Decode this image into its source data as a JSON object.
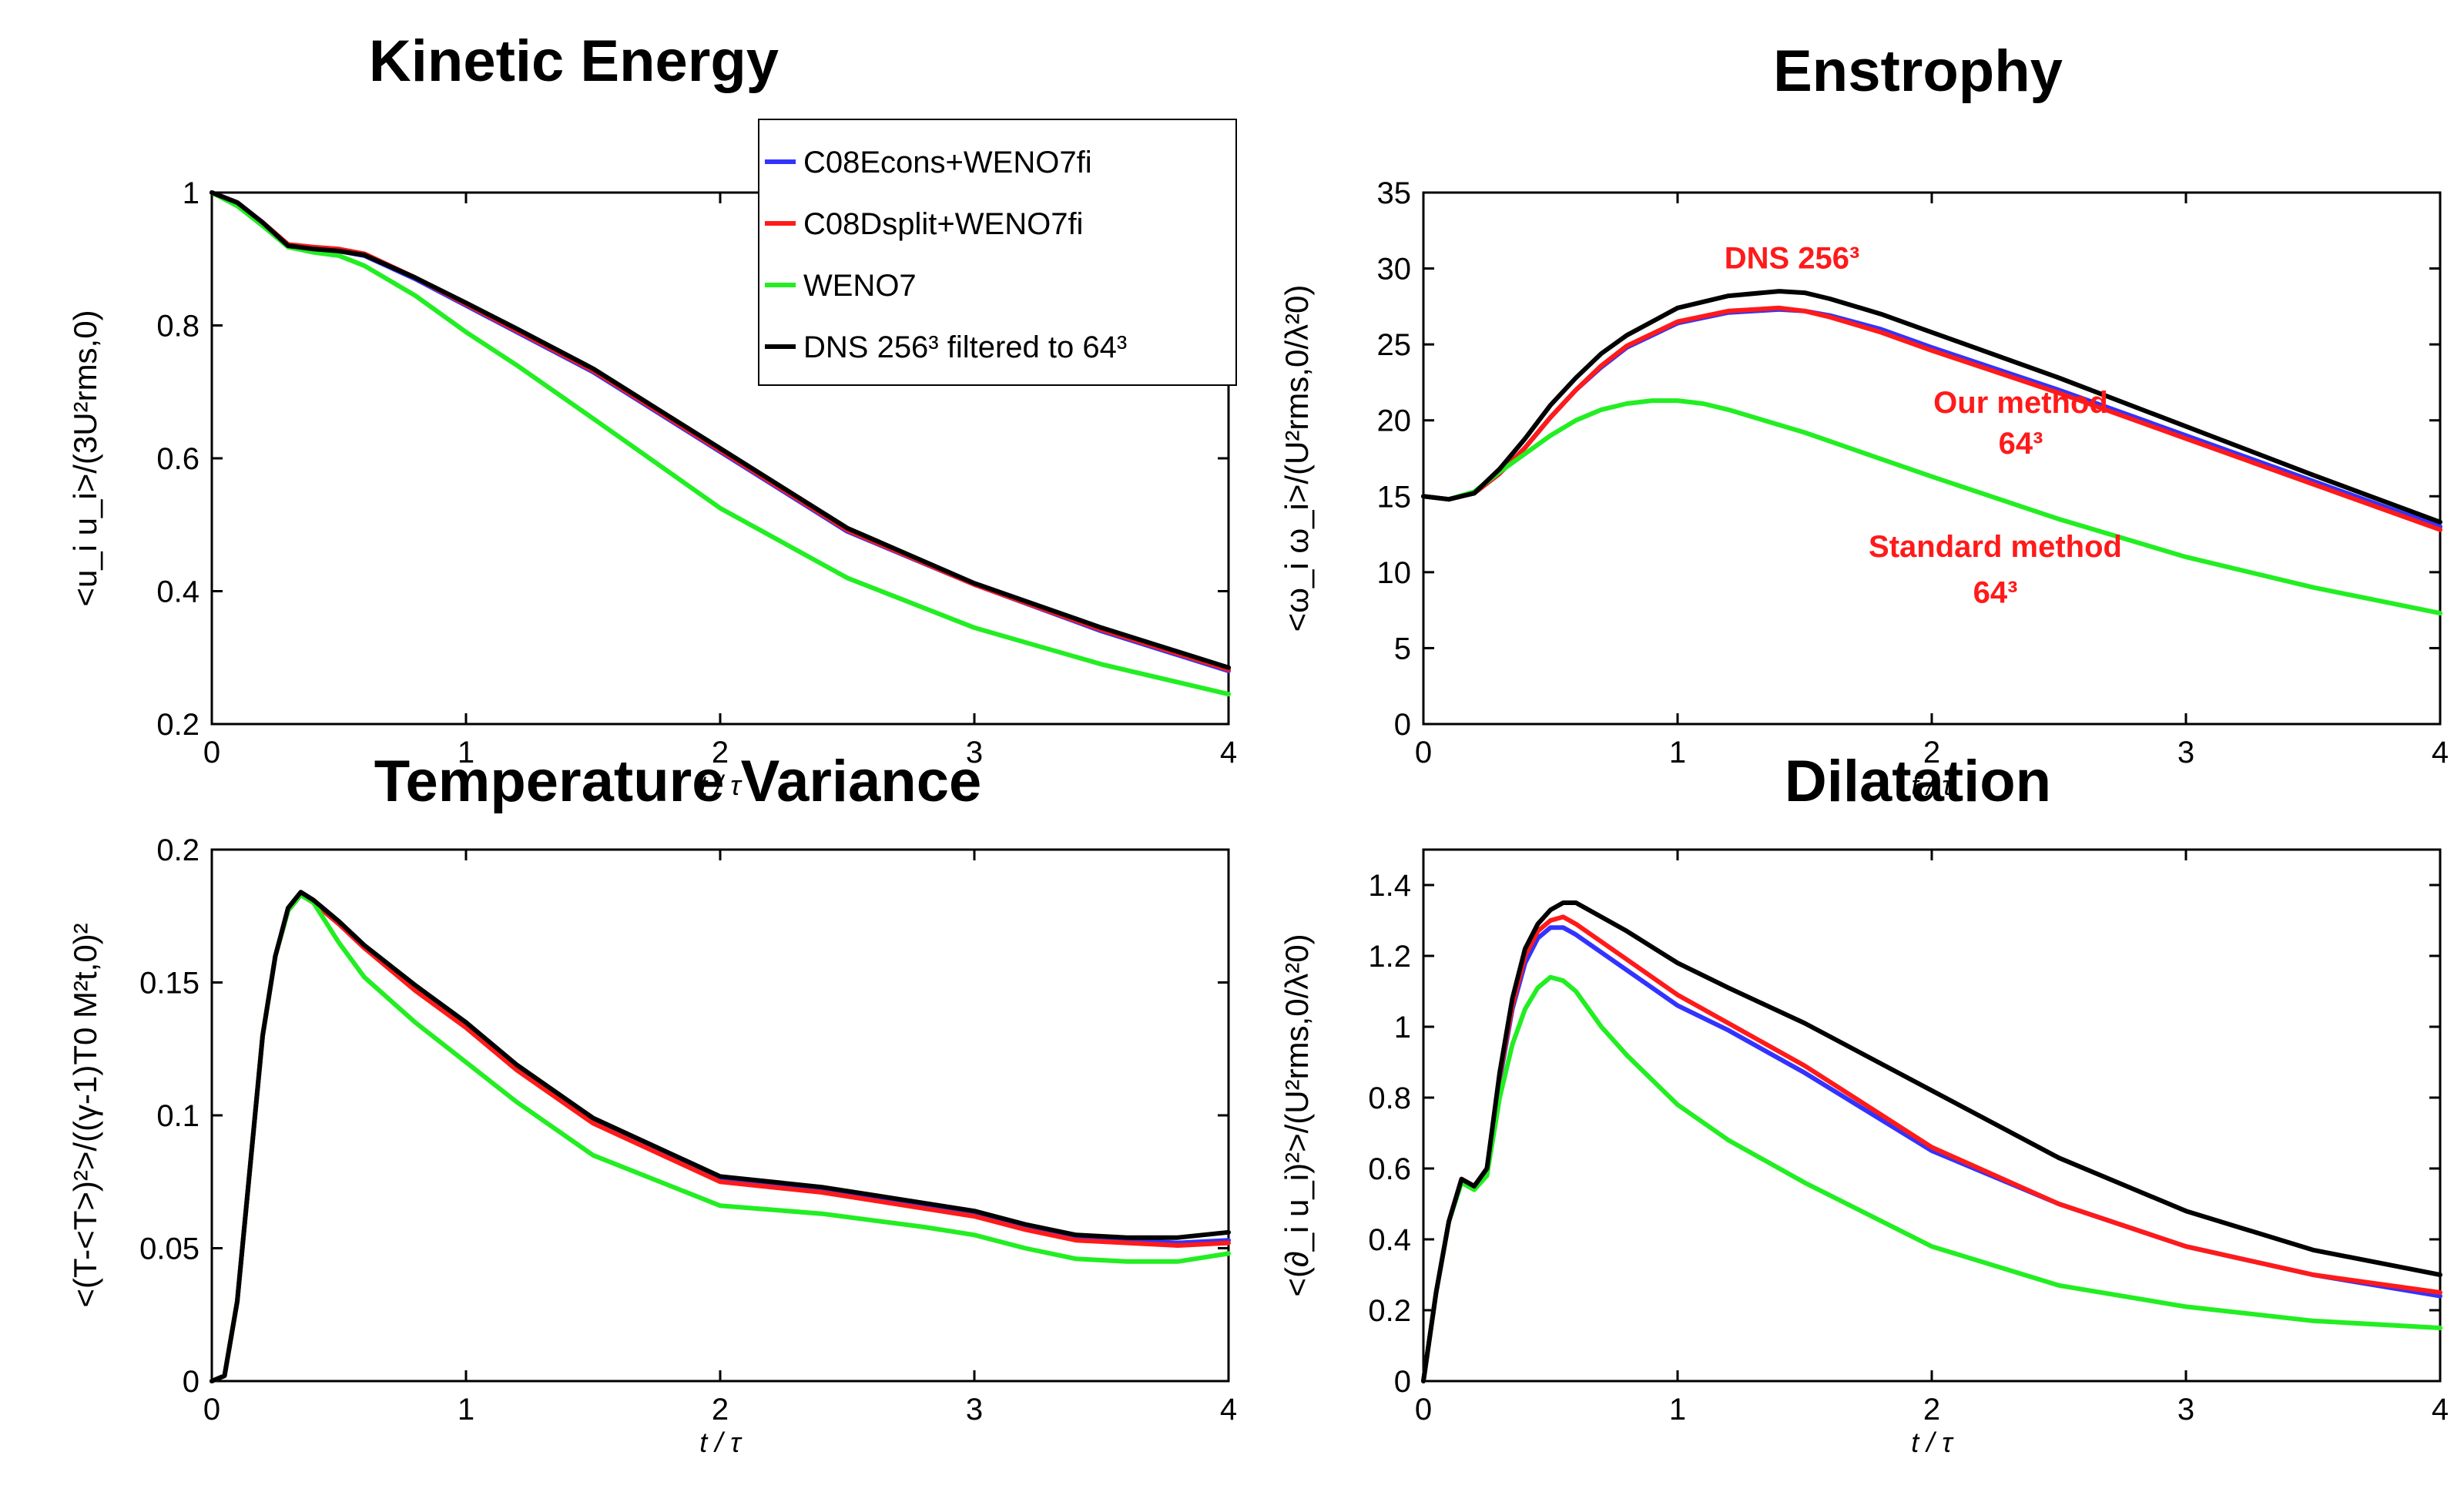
{
  "colors": {
    "C08Econs+WENO7fi": "#3333ff",
    "C08Dsplit+WENO7fi": "#ff1a1a",
    "WENO7": "#22ee22",
    "DNS": "#000000"
  },
  "legend": {
    "items": [
      {
        "name": "C08Econs+WENO7fi",
        "color": "#3333ff"
      },
      {
        "name": "C08Dsplit+WENO7fi",
        "color": "#ff1a1a"
      },
      {
        "name": "WENO7",
        "color": "#22ee22"
      },
      {
        "name": "DNS 256³ filtered to 64³",
        "color": "#000000"
      }
    ]
  },
  "chart_data": [
    {
      "id": "ke",
      "type": "line",
      "title": "Kinetic Energy",
      "ylabel": "<u_i u_i>/(3U²rms,0)",
      "xlabel": "t / τ",
      "xlim": [
        0,
        4
      ],
      "ylim": [
        0.2,
        1
      ],
      "xticks": [
        "0",
        "1",
        "2",
        "3",
        "4"
      ],
      "yticks": [
        "0.2",
        "0.4",
        "0.6",
        "0.8",
        "1"
      ],
      "series": [
        {
          "name": "C08Econs+WENO7fi",
          "color": "#3333ff",
          "x": [
            0,
            0.1,
            0.2,
            0.3,
            0.4,
            0.5,
            0.6,
            0.8,
            1.0,
            1.2,
            1.5,
            2.0,
            2.5,
            3.0,
            3.5,
            4.0
          ],
          "y": [
            1.0,
            0.985,
            0.955,
            0.92,
            0.915,
            0.912,
            0.905,
            0.87,
            0.83,
            0.79,
            0.73,
            0.61,
            0.49,
            0.41,
            0.34,
            0.28
          ]
        },
        {
          "name": "C08Dsplit+WENO7fi",
          "color": "#ff1a1a",
          "x": [
            0,
            0.1,
            0.2,
            0.3,
            0.4,
            0.5,
            0.6,
            0.8,
            1.0,
            1.2,
            1.5,
            2.0,
            2.5,
            3.0,
            3.5,
            4.0
          ],
          "y": [
            1.0,
            0.985,
            0.955,
            0.922,
            0.918,
            0.915,
            0.908,
            0.872,
            0.832,
            0.792,
            0.732,
            0.612,
            0.492,
            0.41,
            0.342,
            0.282
          ]
        },
        {
          "name": "WENO7",
          "color": "#22ee22",
          "x": [
            0,
            0.1,
            0.2,
            0.3,
            0.4,
            0.5,
            0.6,
            0.8,
            1.0,
            1.2,
            1.5,
            2.0,
            2.5,
            3.0,
            3.5,
            4.0
          ],
          "y": [
            1.0,
            0.98,
            0.95,
            0.918,
            0.91,
            0.905,
            0.89,
            0.845,
            0.79,
            0.74,
            0.66,
            0.525,
            0.42,
            0.345,
            0.29,
            0.245
          ]
        },
        {
          "name": "DNS 256³ filtered to 64³",
          "color": "#000000",
          "x": [
            0,
            0.1,
            0.2,
            0.3,
            0.4,
            0.5,
            0.6,
            0.8,
            1.0,
            1.2,
            1.5,
            2.0,
            2.5,
            3.0,
            3.5,
            4.0
          ],
          "y": [
            1.0,
            0.985,
            0.955,
            0.92,
            0.915,
            0.912,
            0.906,
            0.872,
            0.834,
            0.795,
            0.735,
            0.615,
            0.495,
            0.412,
            0.345,
            0.285
          ]
        }
      ]
    },
    {
      "id": "ens",
      "type": "line",
      "title": "Enstrophy",
      "ylabel": "<ω_i ω_i>/(U²rms,0/λ²0)",
      "xlabel": "t / τ",
      "xlim": [
        0,
        4
      ],
      "ylim": [
        0,
        35
      ],
      "xticks": [
        "0",
        "1",
        "2",
        "3",
        "4"
      ],
      "yticks": [
        "0",
        "5",
        "10",
        "15",
        "20",
        "25",
        "30",
        "35"
      ],
      "annotations": [
        {
          "text": "DNS 256³",
          "x": 1.45,
          "y": 30.0
        },
        {
          "text": "Our method",
          "x": 2.35,
          "y": 20.5
        },
        {
          "text": "64³",
          "x": 2.35,
          "y": 17.8
        },
        {
          "text": "Standard method",
          "x": 2.25,
          "y": 11.0
        },
        {
          "text": "64³",
          "x": 2.25,
          "y": 8.0
        }
      ],
      "series": [
        {
          "name": "C08Econs+WENO7fi",
          "color": "#3333ff",
          "x": [
            0,
            0.1,
            0.2,
            0.3,
            0.4,
            0.5,
            0.6,
            0.7,
            0.8,
            1.0,
            1.2,
            1.4,
            1.5,
            1.6,
            1.8,
            2.0,
            2.5,
            3.0,
            3.5,
            4.0
          ],
          "y": [
            15,
            14.8,
            15.2,
            16.5,
            18.2,
            20.2,
            22.0,
            23.5,
            24.8,
            26.4,
            27.1,
            27.3,
            27.2,
            26.9,
            26.0,
            24.8,
            22.0,
            19.0,
            16.0,
            13.0
          ]
        },
        {
          "name": "C08Dsplit+WENO7fi",
          "color": "#ff1a1a",
          "x": [
            0,
            0.1,
            0.2,
            0.3,
            0.4,
            0.5,
            0.6,
            0.7,
            0.8,
            1.0,
            1.2,
            1.4,
            1.5,
            1.6,
            1.8,
            2.0,
            2.5,
            3.0,
            3.5,
            4.0
          ],
          "y": [
            15,
            14.8,
            15.2,
            16.5,
            18.2,
            20.2,
            22.0,
            23.6,
            24.9,
            26.5,
            27.2,
            27.4,
            27.2,
            26.8,
            25.8,
            24.6,
            21.8,
            18.8,
            15.8,
            12.8
          ]
        },
        {
          "name": "WENO7",
          "color": "#22ee22",
          "x": [
            0,
            0.1,
            0.2,
            0.3,
            0.4,
            0.5,
            0.6,
            0.7,
            0.8,
            0.9,
            1.0,
            1.1,
            1.2,
            1.5,
            2.0,
            2.5,
            3.0,
            3.5,
            4.0
          ],
          "y": [
            15,
            14.8,
            15.3,
            16.6,
            17.8,
            19.0,
            20.0,
            20.7,
            21.1,
            21.3,
            21.3,
            21.1,
            20.7,
            19.2,
            16.3,
            13.5,
            11.0,
            9.0,
            7.3
          ]
        },
        {
          "name": "DNS 256³ filtered to 64³",
          "color": "#000000",
          "x": [
            0,
            0.1,
            0.2,
            0.3,
            0.4,
            0.5,
            0.6,
            0.7,
            0.8,
            1.0,
            1.2,
            1.4,
            1.5,
            1.6,
            1.8,
            2.0,
            2.5,
            3.0,
            3.5,
            4.0
          ],
          "y": [
            15,
            14.8,
            15.2,
            16.8,
            18.8,
            21.0,
            22.8,
            24.4,
            25.6,
            27.4,
            28.2,
            28.5,
            28.4,
            28.0,
            27.0,
            25.8,
            22.8,
            19.6,
            16.4,
            13.3
          ]
        }
      ]
    },
    {
      "id": "tv",
      "type": "line",
      "title": "Temperature Variance",
      "ylabel": "<(T-<T>)²>/((γ-1)T0 M²t,0)²",
      "xlabel": "t / τ",
      "xlim": [
        0,
        4
      ],
      "ylim": [
        0,
        0.2
      ],
      "xticks": [
        "0",
        "1",
        "2",
        "3",
        "4"
      ],
      "yticks": [
        "0",
        "0.05",
        "0.1",
        "0.15",
        "0.2"
      ],
      "series": [
        {
          "name": "C08Econs+WENO7fi",
          "color": "#3333ff",
          "x": [
            0,
            0.05,
            0.1,
            0.15,
            0.2,
            0.25,
            0.3,
            0.35,
            0.4,
            0.5,
            0.6,
            0.8,
            1.0,
            1.2,
            1.5,
            2.0,
            2.4,
            2.8,
            3.0,
            3.2,
            3.4,
            3.6,
            3.8,
            4.0
          ],
          "y": [
            0,
            0.002,
            0.03,
            0.08,
            0.13,
            0.16,
            0.177,
            0.183,
            0.18,
            0.172,
            0.163,
            0.148,
            0.134,
            0.118,
            0.098,
            0.076,
            0.072,
            0.066,
            0.063,
            0.058,
            0.054,
            0.053,
            0.052,
            0.053
          ]
        },
        {
          "name": "C08Dsplit+WENO7fi",
          "color": "#ff1a1a",
          "x": [
            0,
            0.05,
            0.1,
            0.15,
            0.2,
            0.25,
            0.3,
            0.35,
            0.4,
            0.5,
            0.6,
            0.8,
            1.0,
            1.2,
            1.5,
            2.0,
            2.4,
            2.8,
            3.0,
            3.2,
            3.4,
            3.6,
            3.8,
            4.0
          ],
          "y": [
            0,
            0.002,
            0.03,
            0.08,
            0.13,
            0.16,
            0.177,
            0.183,
            0.18,
            0.172,
            0.163,
            0.147,
            0.133,
            0.117,
            0.097,
            0.075,
            0.071,
            0.065,
            0.062,
            0.057,
            0.053,
            0.052,
            0.051,
            0.052
          ]
        },
        {
          "name": "WENO7",
          "color": "#22ee22",
          "x": [
            0,
            0.05,
            0.1,
            0.15,
            0.2,
            0.25,
            0.3,
            0.35,
            0.4,
            0.5,
            0.6,
            0.8,
            1.0,
            1.2,
            1.5,
            2.0,
            2.4,
            2.8,
            3.0,
            3.2,
            3.4,
            3.6,
            3.8,
            4.0
          ],
          "y": [
            0,
            0.002,
            0.03,
            0.08,
            0.13,
            0.16,
            0.177,
            0.183,
            0.18,
            0.165,
            0.152,
            0.135,
            0.12,
            0.105,
            0.085,
            0.066,
            0.063,
            0.058,
            0.055,
            0.05,
            0.046,
            0.045,
            0.045,
            0.048
          ]
        },
        {
          "name": "DNS 256³ filtered to 64³",
          "color": "#000000",
          "x": [
            0,
            0.05,
            0.1,
            0.15,
            0.2,
            0.25,
            0.3,
            0.35,
            0.4,
            0.5,
            0.6,
            0.8,
            1.0,
            1.2,
            1.5,
            2.0,
            2.4,
            2.8,
            3.0,
            3.2,
            3.4,
            3.6,
            3.8,
            4.0
          ],
          "y": [
            0,
            0.002,
            0.03,
            0.08,
            0.13,
            0.16,
            0.178,
            0.184,
            0.181,
            0.173,
            0.164,
            0.149,
            0.135,
            0.119,
            0.099,
            0.077,
            0.073,
            0.067,
            0.064,
            0.059,
            0.055,
            0.054,
            0.054,
            0.056
          ]
        }
      ]
    },
    {
      "id": "dil",
      "type": "line",
      "title": "Dilatation",
      "ylabel": "<(∂_i u_i)²>/(U²rms,0/λ²0)",
      "xlabel": "t / τ",
      "xlim": [
        0,
        4
      ],
      "ylim": [
        0,
        1.5
      ],
      "xticks": [
        "0",
        "1",
        "2",
        "3",
        "4"
      ],
      "yticks": [
        "0",
        "0.2",
        "0.4",
        "0.6",
        "0.8",
        "1",
        "1.2",
        "1.4"
      ],
      "series": [
        {
          "name": "C08Econs+WENO7fi",
          "color": "#3333ff",
          "x": [
            0,
            0.05,
            0.1,
            0.15,
            0.2,
            0.25,
            0.3,
            0.35,
            0.4,
            0.45,
            0.5,
            0.55,
            0.6,
            0.7,
            0.8,
            1.0,
            1.2,
            1.5,
            2.0,
            2.5,
            3.0,
            3.5,
            4.0
          ],
          "y": [
            0,
            0.25,
            0.45,
            0.57,
            0.55,
            0.6,
            0.85,
            1.05,
            1.18,
            1.25,
            1.28,
            1.28,
            1.26,
            1.21,
            1.16,
            1.06,
            0.99,
            0.87,
            0.65,
            0.5,
            0.38,
            0.3,
            0.24
          ]
        },
        {
          "name": "C08Dsplit+WENO7fi",
          "color": "#ff1a1a",
          "x": [
            0,
            0.05,
            0.1,
            0.15,
            0.2,
            0.25,
            0.3,
            0.35,
            0.4,
            0.45,
            0.5,
            0.55,
            0.6,
            0.7,
            0.8,
            1.0,
            1.2,
            1.5,
            2.0,
            2.5,
            3.0,
            3.5,
            4.0
          ],
          "y": [
            0,
            0.25,
            0.45,
            0.57,
            0.55,
            0.6,
            0.86,
            1.06,
            1.2,
            1.27,
            1.3,
            1.31,
            1.29,
            1.24,
            1.19,
            1.09,
            1.01,
            0.89,
            0.66,
            0.5,
            0.38,
            0.3,
            0.25
          ]
        },
        {
          "name": "WENO7",
          "color": "#22ee22",
          "x": [
            0,
            0.05,
            0.1,
            0.15,
            0.2,
            0.25,
            0.3,
            0.35,
            0.4,
            0.45,
            0.5,
            0.55,
            0.6,
            0.7,
            0.8,
            1.0,
            1.2,
            1.5,
            2.0,
            2.5,
            3.0,
            3.5,
            4.0
          ],
          "y": [
            0,
            0.25,
            0.45,
            0.56,
            0.54,
            0.58,
            0.8,
            0.95,
            1.05,
            1.11,
            1.14,
            1.13,
            1.1,
            1.0,
            0.92,
            0.78,
            0.68,
            0.56,
            0.38,
            0.27,
            0.21,
            0.17,
            0.15
          ]
        },
        {
          "name": "DNS 256³ filtered to 64³",
          "color": "#000000",
          "x": [
            0,
            0.05,
            0.1,
            0.15,
            0.2,
            0.25,
            0.3,
            0.35,
            0.4,
            0.45,
            0.5,
            0.55,
            0.6,
            0.7,
            0.8,
            1.0,
            1.2,
            1.5,
            2.0,
            2.5,
            3.0,
            3.5,
            4.0
          ],
          "y": [
            0,
            0.25,
            0.45,
            0.57,
            0.55,
            0.6,
            0.87,
            1.08,
            1.22,
            1.29,
            1.33,
            1.35,
            1.35,
            1.31,
            1.27,
            1.18,
            1.11,
            1.01,
            0.82,
            0.63,
            0.48,
            0.37,
            0.3
          ]
        }
      ]
    }
  ]
}
